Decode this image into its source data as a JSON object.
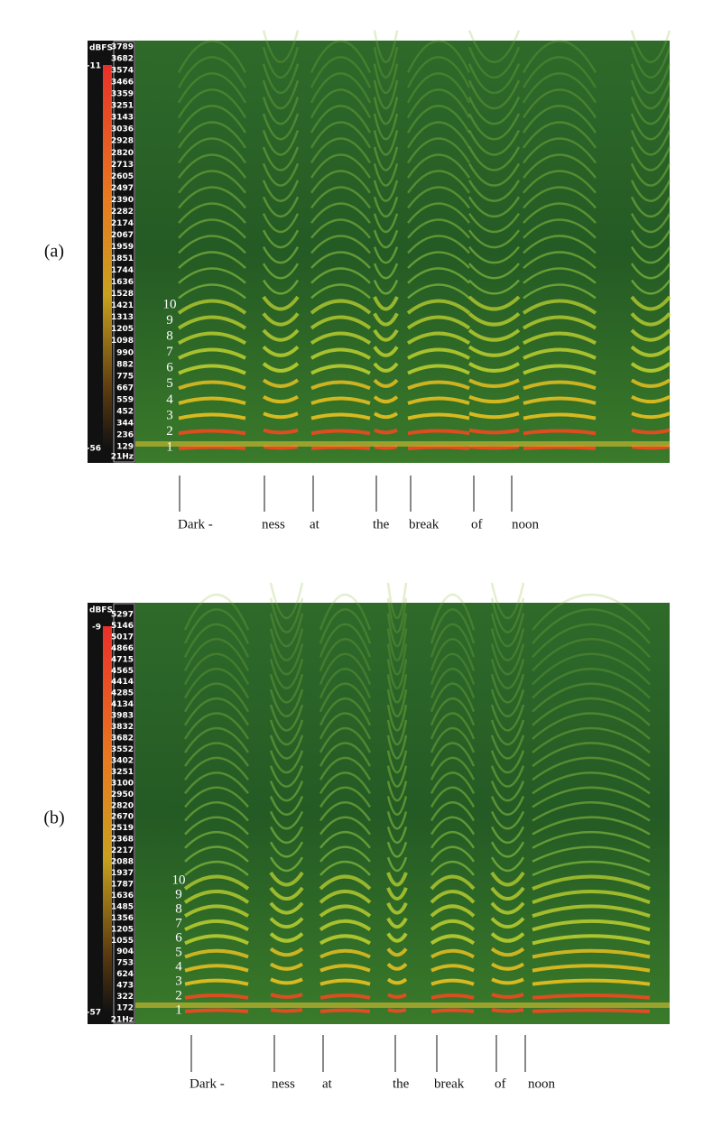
{
  "panels": [
    {
      "label": "(a)",
      "colorbar": {
        "unit": "dBFS",
        "max": "-11",
        "min": "-56"
      },
      "frequency_labels": [
        "3789",
        "3682",
        "3574",
        "3466",
        "3359",
        "3251",
        "3143",
        "3036",
        "2928",
        "2820",
        "2713",
        "2605",
        "2497",
        "2390",
        "2282",
        "2174",
        "2067",
        "1959",
        "1851",
        "1744",
        "1636",
        "1528",
        "1421",
        "1313",
        "1205",
        "1098",
        "990",
        "882",
        "775",
        "667",
        "559",
        "452",
        "344",
        "236",
        "129"
      ],
      "frequency_floor": "21Hz",
      "harmonics": [
        "1",
        "2",
        "3",
        "4",
        "5",
        "6",
        "7",
        "8",
        "9",
        "10"
      ],
      "words": [
        "Dark -",
        "ness",
        "at",
        "the",
        "break",
        "of",
        "noon"
      ]
    },
    {
      "label": "(b)",
      "colorbar": {
        "unit": "dBFS",
        "max": "-9",
        "min": "-57"
      },
      "frequency_labels": [
        "5297",
        "5146",
        "5017",
        "4866",
        "4715",
        "4565",
        "4414",
        "4285",
        "4134",
        "3983",
        "3832",
        "3682",
        "3552",
        "3402",
        "3251",
        "3100",
        "2950",
        "2820",
        "2670",
        "2519",
        "2368",
        "2217",
        "2088",
        "1937",
        "1787",
        "1636",
        "1485",
        "1356",
        "1205",
        "1055",
        "904",
        "753",
        "624",
        "473",
        "322",
        "172"
      ],
      "frequency_floor": "21Hz",
      "harmonics": [
        "1",
        "2",
        "3",
        "4",
        "5",
        "6",
        "7",
        "8",
        "9",
        "10"
      ],
      "words": [
        "Dark -",
        "ness",
        "at",
        "the",
        "break",
        "of",
        "noon"
      ]
    }
  ]
}
